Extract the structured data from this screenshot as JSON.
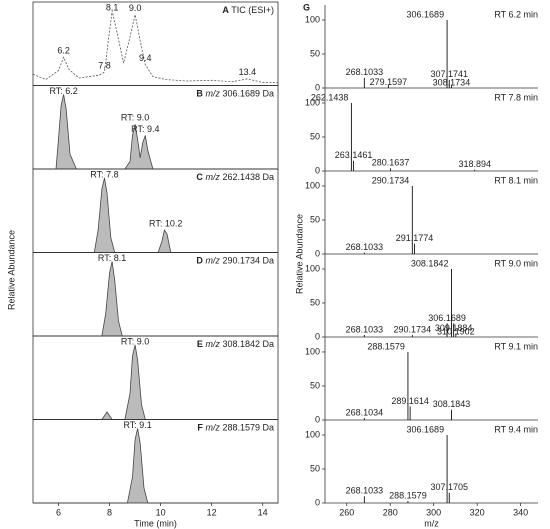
{
  "chart_data": [
    {
      "type": "line",
      "panel": "A",
      "title": "TIC (ESI+)",
      "fill": "#ffffff",
      "stroke": "#555555",
      "dashed": true,
      "x": [
        5,
        5.5,
        6.0,
        6.2,
        6.4,
        6.8,
        7.2,
        7.6,
        7.8,
        7.95,
        8.1,
        8.3,
        8.55,
        8.8,
        9.0,
        9.2,
        9.4,
        9.7,
        10.2,
        11,
        12,
        12.8,
        13.4,
        14,
        14.6
      ],
      "values": [
        15,
        8,
        20,
        38,
        22,
        10,
        12,
        14,
        18,
        60,
        100,
        70,
        30,
        65,
        95,
        60,
        28,
        12,
        8,
        6,
        7,
        5,
        9,
        4,
        4
      ],
      "annotations": [
        {
          "label": "6.2",
          "x": 6.2,
          "y": 38
        },
        {
          "label": "7.8",
          "x": 7.8,
          "y": 18
        },
        {
          "label": "8.1",
          "x": 8.1,
          "y": 100
        },
        {
          "label": "9.0",
          "x": 9.0,
          "y": 95
        },
        {
          "label": "9.4",
          "x": 9.4,
          "y": 28
        },
        {
          "label": "13.4",
          "x": 13.4,
          "y": 9
        }
      ],
      "xlim": [
        5,
        14.6
      ],
      "ylim": [
        0,
        112
      ]
    },
    {
      "type": "line",
      "panel": "B",
      "title_italic": "m/z",
      "title": "306.1689 Da",
      "fill": "#bbbbbb",
      "stroke": "#444444",
      "x": [
        5,
        5.9,
        6.0,
        6.1,
        6.2,
        6.3,
        6.45,
        6.7,
        8.6,
        8.8,
        8.9,
        9.0,
        9.1,
        9.2,
        9.3,
        9.4,
        9.5,
        9.7,
        14.6
      ],
      "values": [
        0,
        0,
        40,
        85,
        100,
        80,
        20,
        0,
        0,
        10,
        45,
        60,
        40,
        15,
        35,
        45,
        25,
        0,
        0
      ],
      "annotations": [
        {
          "label": "RT: 6.2",
          "x": 6.2,
          "y": 100
        },
        {
          "label": "RT: 9.0",
          "x": 9.0,
          "y": 60
        },
        {
          "label": "RT: 9.4",
          "x": 9.4,
          "y": 45
        }
      ],
      "xlim": [
        5,
        14.6
      ],
      "ylim": [
        0,
        112
      ]
    },
    {
      "type": "line",
      "panel": "C",
      "title_italic": "m/z",
      "title": "262.1438 Da",
      "fill": "#bbbbbb",
      "stroke": "#444444",
      "x": [
        5,
        7.4,
        7.55,
        7.7,
        7.8,
        7.9,
        8.05,
        8.2,
        9.9,
        10.05,
        10.15,
        10.25,
        10.4,
        14.6
      ],
      "values": [
        0,
        0,
        30,
        85,
        100,
        80,
        20,
        0,
        0,
        15,
        30,
        25,
        0,
        0
      ],
      "annotations": [
        {
          "label": "RT: 7.8",
          "x": 7.8,
          "y": 100
        },
        {
          "label": "RT: 10.2",
          "x": 10.2,
          "y": 30
        }
      ],
      "xlim": [
        5,
        14.6
      ],
      "ylim": [
        0,
        112
      ]
    },
    {
      "type": "line",
      "panel": "D",
      "title_italic": "m/z",
      "title": "290.1734 Da",
      "fill": "#bbbbbb",
      "stroke": "#444444",
      "x": [
        5,
        7.7,
        7.85,
        8.0,
        8.1,
        8.2,
        8.35,
        8.5,
        14.6
      ],
      "values": [
        0,
        0,
        30,
        85,
        100,
        75,
        20,
        0,
        0
      ],
      "annotations": [
        {
          "label": "RT: 8.1",
          "x": 8.1,
          "y": 100
        }
      ],
      "ylabel": "Relative Abundance",
      "xlim": [
        5,
        14.6
      ],
      "ylim": [
        0,
        112
      ]
    },
    {
      "type": "line",
      "panel": "E",
      "title_italic": "m/z",
      "title": "308.1842 Da",
      "fill": "#bbbbbb",
      "stroke": "#444444",
      "x": [
        5,
        7.7,
        7.9,
        8.1,
        8.6,
        8.8,
        8.9,
        9.0,
        9.1,
        9.25,
        9.4,
        14.6
      ],
      "values": [
        0,
        0,
        10,
        0,
        0,
        35,
        85,
        100,
        80,
        20,
        0,
        0
      ],
      "annotations": [
        {
          "label": "RT: 9.0",
          "x": 9.0,
          "y": 100
        }
      ],
      "xlim": [
        5,
        14.6
      ],
      "ylim": [
        0,
        112
      ]
    },
    {
      "type": "line",
      "panel": "F",
      "title_italic": "m/z",
      "title": "288.1579 Da",
      "fill": "#bbbbbb",
      "stroke": "#444444",
      "x": [
        5,
        8.7,
        8.9,
        9.0,
        9.1,
        9.2,
        9.35,
        9.5,
        14.6
      ],
      "values": [
        0,
        0,
        35,
        85,
        100,
        80,
        20,
        0,
        0
      ],
      "annotations": [
        {
          "label": "RT: 9.1",
          "x": 9.1,
          "y": 100
        }
      ],
      "xlabel": "Time (min)",
      "xticks": [
        6,
        8,
        10,
        12,
        14
      ],
      "xlim": [
        5,
        14.6
      ],
      "ylim": [
        0,
        112
      ]
    },
    {
      "type": "bar",
      "panel": "G",
      "title": "RT 6.2 min",
      "color": "#111111",
      "x": [
        268.1033,
        279.1597,
        306.1689,
        307.1741,
        308.1734
      ],
      "values": [
        15,
        5,
        100,
        12,
        4
      ],
      "xlim": [
        250,
        348
      ],
      "ylim": [
        0,
        122
      ],
      "yticks": [
        0,
        50,
        100
      ]
    },
    {
      "type": "bar",
      "title": "RT 7.8 min",
      "color": "#111111",
      "x": [
        262.1438,
        263.1461,
        280.1637,
        318.894
      ],
      "values": [
        100,
        15,
        4,
        2
      ],
      "xlim": [
        250,
        348
      ],
      "ylim": [
        0,
        122
      ],
      "yticks": [
        0,
        50,
        100
      ]
    },
    {
      "type": "bar",
      "title": "RT 8.1 min",
      "color": "#111111",
      "x": [
        268.1033,
        290.1734,
        291.1774
      ],
      "values": [
        2,
        100,
        15
      ],
      "xlim": [
        250,
        348
      ],
      "ylim": [
        0,
        122
      ],
      "yticks": [
        0,
        50,
        100
      ]
    },
    {
      "type": "bar",
      "title": "RT 9.0 min",
      "color": "#111111",
      "x": [
        268.1033,
        290.1734,
        306.1689,
        308.1842,
        309.1884,
        310.1902
      ],
      "values": [
        3,
        3,
        20,
        100,
        20,
        5
      ],
      "ylabel": "Relative Abundance",
      "xlim": [
        250,
        348
      ],
      "ylim": [
        0,
        122
      ],
      "yticks": [
        0,
        50,
        100
      ]
    },
    {
      "type": "bar",
      "title": "RT 9.1 min",
      "color": "#111111",
      "x": [
        268.1034,
        288.1579,
        289.1614,
        308.1843
      ],
      "values": [
        3,
        100,
        20,
        15
      ],
      "xlim": [
        250,
        348
      ],
      "ylim": [
        0,
        122
      ],
      "yticks": [
        0,
        50,
        100
      ]
    },
    {
      "type": "bar",
      "title": "RT 9.4 min",
      "color": "#111111",
      "x": [
        268.1033,
        288.1579,
        306.1689,
        307.1705
      ],
      "values": [
        10,
        3,
        100,
        15
      ],
      "xlabel": "m/z",
      "xticks": [
        260,
        280,
        300,
        320,
        340
      ],
      "xlim": [
        250,
        348
      ],
      "ylim": [
        0,
        122
      ],
      "yticks": [
        0,
        50,
        100
      ]
    }
  ]
}
